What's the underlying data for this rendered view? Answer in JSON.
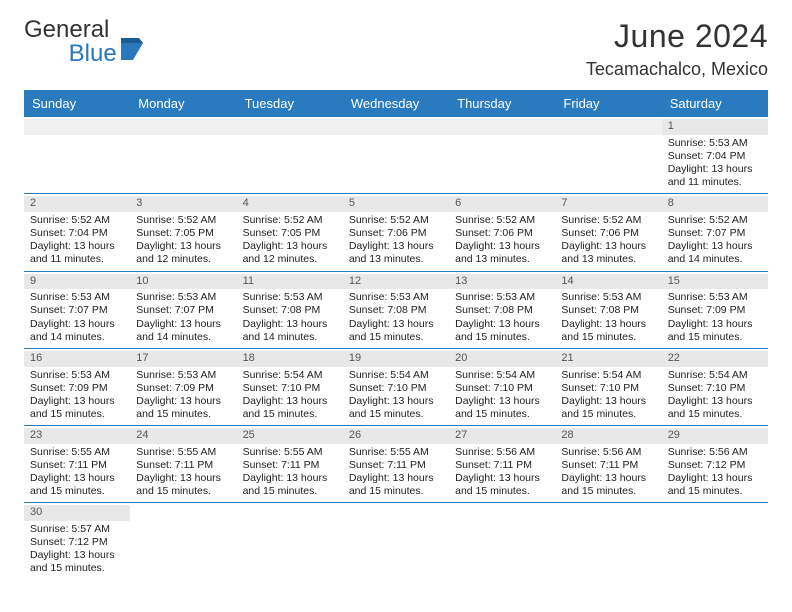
{
  "logo": {
    "textA": "General",
    "textB": "Blue",
    "flag_color": "#2a77bb"
  },
  "title": "June 2024",
  "location": "Tecamachalco, Mexico",
  "day_names": [
    "Sunday",
    "Monday",
    "Tuesday",
    "Wednesday",
    "Thursday",
    "Friday",
    "Saturday"
  ],
  "header_bg": "#2a7ac0",
  "cell_label_bg": "#e8e8e8",
  "border_color": "#2a7ac0",
  "weeks": [
    [
      null,
      null,
      null,
      null,
      null,
      null,
      {
        "n": "1",
        "sr": "Sunrise: 5:53 AM",
        "ss": "Sunset: 7:04 PM",
        "d1": "Daylight: 13 hours",
        "d2": "and 11 minutes."
      }
    ],
    [
      {
        "n": "2",
        "sr": "Sunrise: 5:52 AM",
        "ss": "Sunset: 7:04 PM",
        "d1": "Daylight: 13 hours",
        "d2": "and 11 minutes."
      },
      {
        "n": "3",
        "sr": "Sunrise: 5:52 AM",
        "ss": "Sunset: 7:05 PM",
        "d1": "Daylight: 13 hours",
        "d2": "and 12 minutes."
      },
      {
        "n": "4",
        "sr": "Sunrise: 5:52 AM",
        "ss": "Sunset: 7:05 PM",
        "d1": "Daylight: 13 hours",
        "d2": "and 12 minutes."
      },
      {
        "n": "5",
        "sr": "Sunrise: 5:52 AM",
        "ss": "Sunset: 7:06 PM",
        "d1": "Daylight: 13 hours",
        "d2": "and 13 minutes."
      },
      {
        "n": "6",
        "sr": "Sunrise: 5:52 AM",
        "ss": "Sunset: 7:06 PM",
        "d1": "Daylight: 13 hours",
        "d2": "and 13 minutes."
      },
      {
        "n": "7",
        "sr": "Sunrise: 5:52 AM",
        "ss": "Sunset: 7:06 PM",
        "d1": "Daylight: 13 hours",
        "d2": "and 13 minutes."
      },
      {
        "n": "8",
        "sr": "Sunrise: 5:52 AM",
        "ss": "Sunset: 7:07 PM",
        "d1": "Daylight: 13 hours",
        "d2": "and 14 minutes."
      }
    ],
    [
      {
        "n": "9",
        "sr": "Sunrise: 5:53 AM",
        "ss": "Sunset: 7:07 PM",
        "d1": "Daylight: 13 hours",
        "d2": "and 14 minutes."
      },
      {
        "n": "10",
        "sr": "Sunrise: 5:53 AM",
        "ss": "Sunset: 7:07 PM",
        "d1": "Daylight: 13 hours",
        "d2": "and 14 minutes."
      },
      {
        "n": "11",
        "sr": "Sunrise: 5:53 AM",
        "ss": "Sunset: 7:08 PM",
        "d1": "Daylight: 13 hours",
        "d2": "and 14 minutes."
      },
      {
        "n": "12",
        "sr": "Sunrise: 5:53 AM",
        "ss": "Sunset: 7:08 PM",
        "d1": "Daylight: 13 hours",
        "d2": "and 15 minutes."
      },
      {
        "n": "13",
        "sr": "Sunrise: 5:53 AM",
        "ss": "Sunset: 7:08 PM",
        "d1": "Daylight: 13 hours",
        "d2": "and 15 minutes."
      },
      {
        "n": "14",
        "sr": "Sunrise: 5:53 AM",
        "ss": "Sunset: 7:08 PM",
        "d1": "Daylight: 13 hours",
        "d2": "and 15 minutes."
      },
      {
        "n": "15",
        "sr": "Sunrise: 5:53 AM",
        "ss": "Sunset: 7:09 PM",
        "d1": "Daylight: 13 hours",
        "d2": "and 15 minutes."
      }
    ],
    [
      {
        "n": "16",
        "sr": "Sunrise: 5:53 AM",
        "ss": "Sunset: 7:09 PM",
        "d1": "Daylight: 13 hours",
        "d2": "and 15 minutes."
      },
      {
        "n": "17",
        "sr": "Sunrise: 5:53 AM",
        "ss": "Sunset: 7:09 PM",
        "d1": "Daylight: 13 hours",
        "d2": "and 15 minutes."
      },
      {
        "n": "18",
        "sr": "Sunrise: 5:54 AM",
        "ss": "Sunset: 7:10 PM",
        "d1": "Daylight: 13 hours",
        "d2": "and 15 minutes."
      },
      {
        "n": "19",
        "sr": "Sunrise: 5:54 AM",
        "ss": "Sunset: 7:10 PM",
        "d1": "Daylight: 13 hours",
        "d2": "and 15 minutes."
      },
      {
        "n": "20",
        "sr": "Sunrise: 5:54 AM",
        "ss": "Sunset: 7:10 PM",
        "d1": "Daylight: 13 hours",
        "d2": "and 15 minutes."
      },
      {
        "n": "21",
        "sr": "Sunrise: 5:54 AM",
        "ss": "Sunset: 7:10 PM",
        "d1": "Daylight: 13 hours",
        "d2": "and 15 minutes."
      },
      {
        "n": "22",
        "sr": "Sunrise: 5:54 AM",
        "ss": "Sunset: 7:10 PM",
        "d1": "Daylight: 13 hours",
        "d2": "and 15 minutes."
      }
    ],
    [
      {
        "n": "23",
        "sr": "Sunrise: 5:55 AM",
        "ss": "Sunset: 7:11 PM",
        "d1": "Daylight: 13 hours",
        "d2": "and 15 minutes."
      },
      {
        "n": "24",
        "sr": "Sunrise: 5:55 AM",
        "ss": "Sunset: 7:11 PM",
        "d1": "Daylight: 13 hours",
        "d2": "and 15 minutes."
      },
      {
        "n": "25",
        "sr": "Sunrise: 5:55 AM",
        "ss": "Sunset: 7:11 PM",
        "d1": "Daylight: 13 hours",
        "d2": "and 15 minutes."
      },
      {
        "n": "26",
        "sr": "Sunrise: 5:55 AM",
        "ss": "Sunset: 7:11 PM",
        "d1": "Daylight: 13 hours",
        "d2": "and 15 minutes."
      },
      {
        "n": "27",
        "sr": "Sunrise: 5:56 AM",
        "ss": "Sunset: 7:11 PM",
        "d1": "Daylight: 13 hours",
        "d2": "and 15 minutes."
      },
      {
        "n": "28",
        "sr": "Sunrise: 5:56 AM",
        "ss": "Sunset: 7:11 PM",
        "d1": "Daylight: 13 hours",
        "d2": "and 15 minutes."
      },
      {
        "n": "29",
        "sr": "Sunrise: 5:56 AM",
        "ss": "Sunset: 7:12 PM",
        "d1": "Daylight: 13 hours",
        "d2": "and 15 minutes."
      }
    ],
    [
      {
        "n": "30",
        "sr": "Sunrise: 5:57 AM",
        "ss": "Sunset: 7:12 PM",
        "d1": "Daylight: 13 hours",
        "d2": "and 15 minutes."
      },
      null,
      null,
      null,
      null,
      null,
      null
    ]
  ]
}
